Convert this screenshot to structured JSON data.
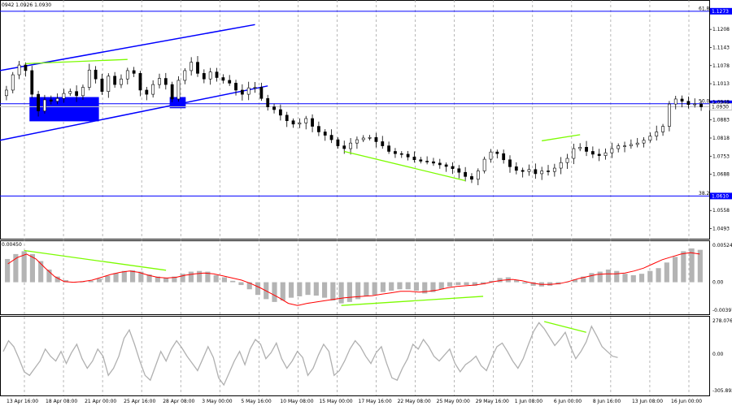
{
  "header": {
    "ohlc_text": "0942 1.0926 1.0930"
  },
  "chart_data": [
    {
      "type": "candlestick",
      "panel": "price",
      "x_ticks": [
        "13 Apr 16:00",
        "18 Apr 08:00",
        "21 Apr 00:00",
        "25 Apr 16:00",
        "28 Apr 08:00",
        "3 May 00:00",
        "5 May 16:00",
        "10 May 08:00",
        "15 May 00:00",
        "17 May 16:00",
        "22 May 08:00",
        "25 May 00:00",
        "29 May 16:00",
        "1 Jun 08:00",
        "6 Jun 00:00",
        "8 Jun 16:00",
        "13 Jun 08:00",
        "16 Jun 00:00"
      ],
      "y_ticks": [
        "1.1208",
        "1.1143",
        "1.1078",
        "1.1013",
        "1.0948",
        "1.0883",
        "1.0818",
        "1.0753",
        "1.0688",
        "1.0558",
        "1.0493"
      ],
      "ylim": [
        1.048,
        1.129
      ],
      "close_series": [
        1.099,
        1.1045,
        1.108,
        1.106,
        1.0975,
        1.0915,
        1.0955,
        1.095,
        1.096,
        1.0978,
        1.0985,
        1.097,
        1.1,
        1.1062,
        1.103,
        1.0985,
        1.104,
        1.101,
        1.103,
        1.106,
        1.105,
        1.099,
        1.0975,
        1.101,
        1.1032,
        1.101,
        1.0958,
        1.1025,
        1.106,
        1.109,
        1.105,
        1.103,
        1.1055,
        1.1035,
        1.1025,
        1.1015,
        1.099,
        1.0975,
        1.0998,
        1.1,
        1.096,
        1.093,
        1.092,
        1.09,
        1.088,
        1.0868,
        1.0872,
        1.0888,
        1.086,
        1.084,
        1.0828,
        1.0812,
        1.079,
        1.078,
        1.08,
        1.0812,
        1.0818,
        1.082,
        1.0805,
        1.079,
        1.077,
        1.0762,
        1.076,
        1.075,
        1.074,
        1.0735,
        1.0733,
        1.0728,
        1.0722,
        1.0716,
        1.0708,
        1.0695,
        1.068,
        1.067,
        1.07,
        1.0742,
        1.0768,
        1.0762,
        1.074,
        1.0715,
        1.0702,
        1.0698,
        1.0705,
        1.069,
        1.07,
        1.0698,
        1.071,
        1.073,
        1.0745,
        1.078,
        1.0785,
        1.077,
        1.076,
        1.0755,
        1.0765,
        1.078,
        1.079,
        1.079,
        1.0795,
        1.08,
        1.081,
        1.0825,
        1.084,
        1.086,
        1.094,
        1.0958,
        1.095,
        1.0938,
        1.094,
        1.093
      ],
      "levels": [
        {
          "label": "61.8",
          "value": "1.1273",
          "color": "#0000ff"
        },
        {
          "label": "50.0",
          "value": "1.0941",
          "color": "#0000ff"
        },
        {
          "label": "",
          "value": "1.0930",
          "color": "#c0c0c0"
        },
        {
          "label": "38.2",
          "value": "1.0610",
          "color": "#0000ff"
        }
      ],
      "colors": {
        "candles": "#000000",
        "fib_lines": "#0000ff",
        "channel": "#0000ff",
        "divergence": "#7cfc00",
        "zones": "#0000ff"
      }
    },
    {
      "type": "histogram+line",
      "panel": "macd",
      "y_ticks": [
        "0.00524",
        "0.00",
        "-0.00397"
      ],
      "top_left_label": "0.00450",
      "ylim": [
        -0.0042,
        0.0056
      ],
      "histogram": [
        0.0033,
        0.004,
        0.0044,
        0.004,
        0.003,
        0.0018,
        0.0008,
        0.0003,
        0.0,
        0.0,
        0.0002,
        0.0005,
        0.0009,
        0.0013,
        0.0016,
        0.0017,
        0.0015,
        0.0011,
        0.0008,
        0.0006,
        0.0008,
        0.0012,
        0.0015,
        0.0016,
        0.0015,
        0.001,
        0.0007,
        0.0002,
        -0.0004,
        -0.001,
        -0.0018,
        -0.0024,
        -0.0028,
        -0.0026,
        -0.0022,
        -0.002,
        -0.0018,
        -0.0019,
        -0.0022,
        -0.0026,
        -0.003,
        -0.0028,
        -0.0024,
        -0.002,
        -0.0018,
        -0.0014,
        -0.0012,
        -0.001,
        -0.001,
        -0.0012,
        -0.0016,
        -0.0014,
        -0.001,
        -0.0006,
        -0.0004,
        -0.0004,
        -0.0005,
        -0.0003,
        0.0002,
        0.0006,
        0.0007,
        0.0003,
        -0.0002,
        -0.0005,
        -0.0006,
        -0.0005,
        -0.0003,
        0.0,
        0.0004,
        0.0008,
        0.0013,
        0.0015,
        0.0018,
        0.0016,
        0.0012,
        0.001,
        0.0012,
        0.0016,
        0.002,
        0.0028,
        0.0036,
        0.0044,
        0.0048,
        0.0046
      ],
      "signal": [
        0.0026,
        0.0035,
        0.004,
        0.0033,
        0.002,
        0.0008,
        0.0001,
        0.0,
        0.0001,
        0.0003,
        0.0007,
        0.0011,
        0.0014,
        0.0016,
        0.0014,
        0.001,
        0.0007,
        0.0006,
        0.0007,
        0.001,
        0.0012,
        0.0013,
        0.0012,
        0.0009,
        0.0006,
        0.0003,
        -0.0002,
        -0.0008,
        -0.0015,
        -0.0022,
        -0.003,
        -0.0033,
        -0.003,
        -0.0028,
        -0.0026,
        -0.0024,
        -0.0022,
        -0.0021,
        -0.002,
        -0.0019,
        -0.0017,
        -0.0015,
        -0.0013,
        -0.0013,
        -0.0014,
        -0.0013,
        -0.0011,
        -0.0008,
        -0.0006,
        -0.0005,
        -0.0004,
        -0.0002,
        0.0001,
        0.0003,
        0.0004,
        0.0002,
        -0.0001,
        -0.0003,
        -0.0003,
        -0.0002,
        0.0001,
        0.0005,
        0.0008,
        0.0011,
        0.0012,
        0.0012,
        0.0013,
        0.0016,
        0.002,
        0.0026,
        0.0032,
        0.0036,
        0.004,
        0.0042,
        0.004
      ]
    },
    {
      "type": "line",
      "panel": "oscillator",
      "y_ticks": [
        "278.0761",
        "0.00",
        "-305.892"
      ],
      "ylim": [
        -320,
        290
      ],
      "values": [
        20,
        110,
        60,
        -40,
        -150,
        -180,
        -120,
        -60,
        40,
        -20,
        -60,
        20,
        -80,
        10,
        80,
        -40,
        -120,
        -60,
        40,
        -20,
        -180,
        -120,
        -20,
        130,
        200,
        80,
        -60,
        -180,
        -220,
        -100,
        20,
        -60,
        40,
        110,
        50,
        -20,
        -80,
        -140,
        -40,
        60,
        -30,
        -200,
        -260,
        -160,
        -60,
        20,
        -90,
        40,
        120,
        80,
        -40,
        10,
        90,
        -40,
        -120,
        -60,
        20,
        -30,
        -180,
        -120,
        -10,
        80,
        20,
        -180,
        -140,
        -60,
        40,
        110,
        60,
        -20,
        -80,
        10,
        60,
        -80,
        -200,
        -220,
        -120,
        -40,
        80,
        40,
        120,
        60,
        -20,
        -60,
        -10,
        40,
        -80,
        -150,
        -90,
        -60,
        -20,
        -100,
        -140,
        -30,
        60,
        90,
        20,
        -60,
        -120,
        -40,
        80,
        190,
        260,
        210,
        140,
        70,
        120,
        180,
        60,
        -40,
        20,
        100,
        230,
        150,
        60,
        20,
        -20,
        -30
      ]
    }
  ]
}
